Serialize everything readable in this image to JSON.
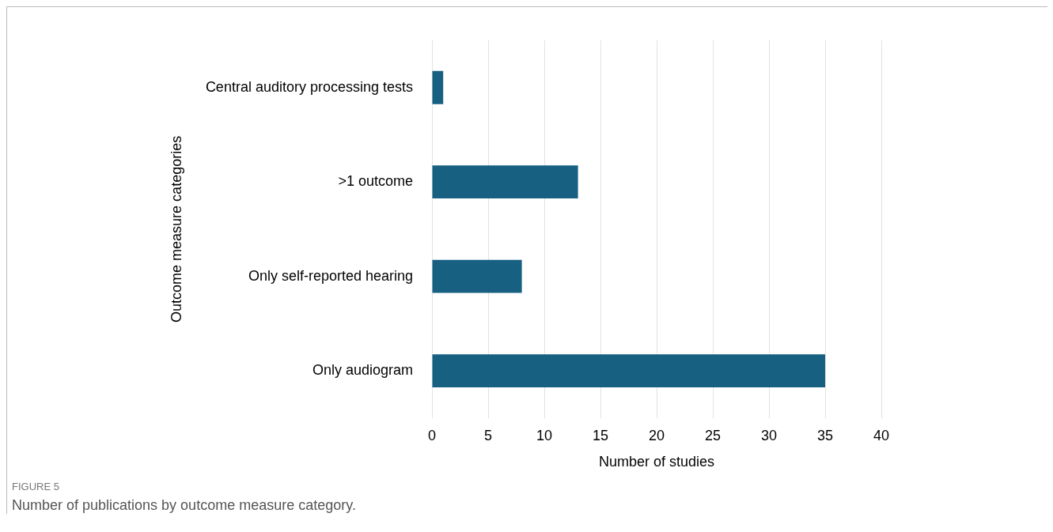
{
  "chart_data": {
    "type": "bar",
    "orientation": "horizontal",
    "categories": [
      "Central auditory processing tests",
      ">1 outcome",
      "Only self-reported hearing",
      "Only audiogram"
    ],
    "values": [
      1,
      13,
      8,
      35
    ],
    "color": "#176082",
    "xlim": [
      0,
      40
    ],
    "xticks": [
      0,
      5,
      10,
      15,
      20,
      25,
      30,
      35,
      40
    ],
    "grid": "x",
    "xlabel": "Number of studies",
    "ylabel": "Outcome measure categories",
    "annotations": [
      "FIGURE 5",
      "Number of publications by outcome measure category."
    ]
  }
}
